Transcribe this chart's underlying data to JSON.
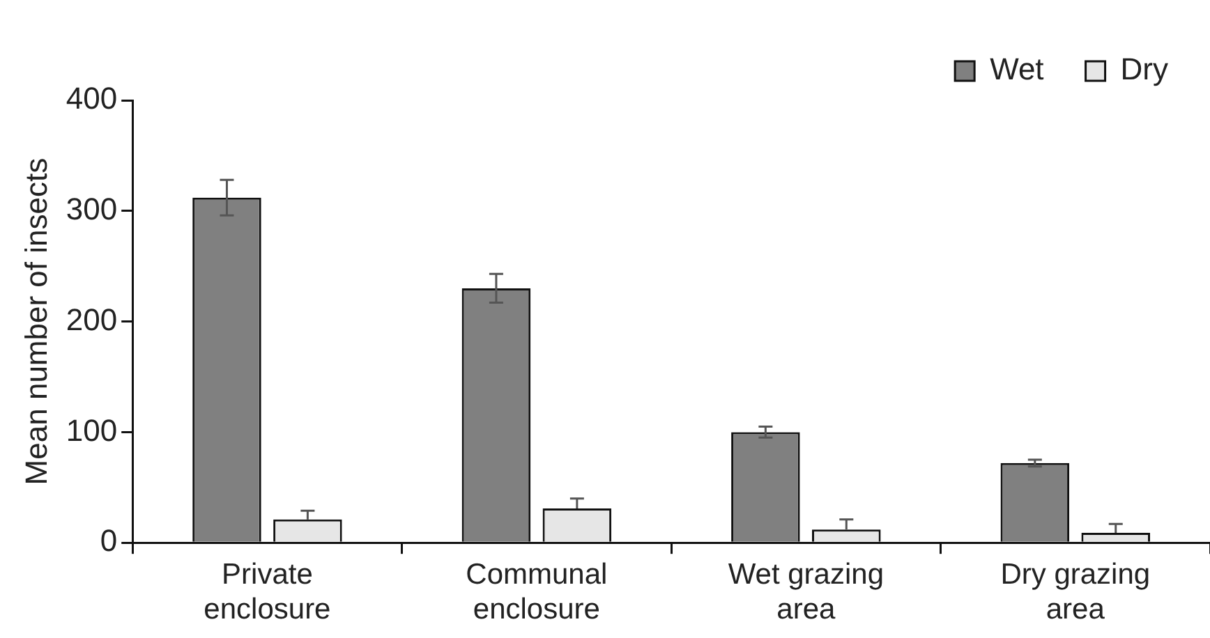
{
  "chart_data": {
    "type": "bar",
    "ylabel": "Mean number of insects",
    "categories": [
      "Private enclosure",
      "Communal enclosure",
      "Wet grazing area",
      "Dry grazing area"
    ],
    "series": [
      {
        "name": "Wet",
        "color": "#808080",
        "values": [
          312,
          230,
          100,
          72
        ],
        "errors": [
          16,
          13,
          5,
          3
        ]
      },
      {
        "name": "Dry",
        "color": "#e6e6e6",
        "values": [
          21,
          31,
          12,
          9
        ],
        "errors": [
          [
            21,
            29
          ],
          [
            31,
            40
          ],
          [
            12,
            21
          ],
          [
            9,
            17
          ]
        ]
      }
    ],
    "ylim": [
      0,
      400
    ],
    "yticks": [
      0,
      100,
      200,
      300,
      400
    ],
    "grid": false,
    "legend": "top right"
  }
}
